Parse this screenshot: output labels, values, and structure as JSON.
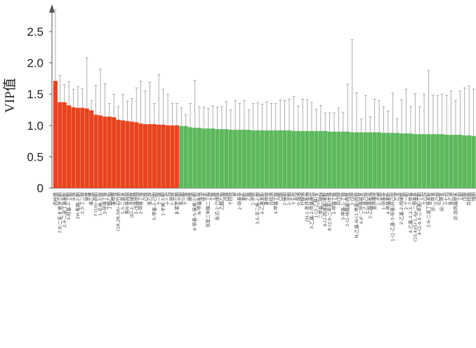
{
  "chart_data": {
    "type": "bar",
    "ylabel": "VIP值",
    "ylim": [
      0,
      3
    ],
    "yticks": [
      0,
      0.5,
      1.0,
      1.5,
      2.0,
      2.5
    ],
    "ytick_labels": [
      "0",
      "0.5",
      "1.0",
      "1.5",
      "2.0",
      "2.5"
    ],
    "grid": false,
    "colors": {
      "vip_above_1": "#e8431f",
      "vip_below_1": "#5cb85c",
      "error_bar": "#999999",
      "axis": "#555555"
    },
    "categories": [
      "肉桂醛",
      "7,8-二氢-β-紫罗兰酮",
      "2,4-二叔丁基苯酚",
      "3-羟基-2-丁酮",
      "壬醛",
      "2H-吡喃-2-酮",
      "2,3-丁二醇",
      "癸醛",
      "苯乙醛",
      "7-(1H)-茚酮",
      "1-辛烯-3-醇",
      "3-甲基丁醛",
      "丁酸乙酯",
      "苯甲醛",
      "(1R,2R,5R)-石竹烯",
      "1,3-二氯苯",
      "香叶基丙酮",
      "(E)-2-辛烯醛",
      "2-戊基呋喃",
      "2-甲基丁醛",
      "己醛",
      "苯乙醇",
      "5-甲基-2-己酮",
      "十一醛",
      "1-辛烯-3-酮",
      "十三烷",
      "1-癸醇",
      "β-紫罗兰酮",
      "苯乙酮",
      "十二醛",
      "庚醛",
      "6-甲基-5-庚烯-2-酮",
      "N-甲基吡咯",
      "甲苯",
      "邻苯二甲酸二丁酯",
      "丁酸",
      "反式-2-己烯醛",
      "乙酸乙酯",
      "戊醛",
      "十四烷",
      "萘",
      "2-甲基萘",
      "苯酚",
      "乙酸",
      "1-辛醇",
      "3,5-辛二烯-2-酮",
      "4-乙基苯酚",
      "苯甲醇",
      "月桂烯",
      "3-甲基丁酸",
      "己酸",
      "2-庚酮",
      "2-辛酮",
      "十五烷",
      "α-蒎烯",
      "柠檬烯",
      "2H-1-苯并吡喃",
      "3-乙基-2-甲基庚烷",
      "1-(2-乙基)苯",
      "二甲基二硫醚",
      "4-(2-丙烯基)苯酚",
      "8-(2,6-二甲基)辛醛",
      "2-甲基丁酸",
      "异戊醇",
      "3-甲基-1-丁醇",
      "2-(2-呋喃基)丙醛",
      "1-戊醇",
      "N-乙基-N-(1-甲基)丙胺",
      "4,4'-二甲基联苯",
      "2-乙基己醇",
      "2-乙酰基吡咯",
      "苯并噻唑",
      "2-壬酮",
      "1-甲基萘",
      "4-甲基苯酚",
      "1-(1-乙基-3-甲基)环己烷",
      "乙苯",
      "2-乙基-2-丙烯醛",
      "2-十一酮",
      "4-乙基-2,2,3-三甲基",
      "(1S,4aS)-1,4a-二甲基萘",
      "4-(2,4,4-三甲基)丁酮",
      "十六烷",
      "2,6-二叔丁基苯酚",
      "对-二甲苯",
      "正己醇",
      "间-二甲苯",
      "十七烷",
      "苯乙烯",
      "对-异丙基甲苯",
      "丁酮",
      "戊酸",
      "月桂酸",
      "植酮"
    ],
    "values": [
      1.71,
      1.37,
      1.37,
      1.32,
      1.29,
      1.28,
      1.28,
      1.27,
      1.24,
      1.17,
      1.16,
      1.14,
      1.14,
      1.13,
      1.09,
      1.08,
      1.07,
      1.06,
      1.05,
      1.03,
      1.02,
      1.02,
      1.02,
      1.01,
      1.01,
      1.0,
      1.0,
      1.0,
      0.99,
      0.99,
      0.97,
      0.96,
      0.96,
      0.95,
      0.95,
      0.95,
      0.94,
      0.94,
      0.94,
      0.93,
      0.93,
      0.93,
      0.93,
      0.93,
      0.92,
      0.92,
      0.92,
      0.92,
      0.92,
      0.92,
      0.92,
      0.92,
      0.92,
      0.91,
      0.91,
      0.91,
      0.91,
      0.91,
      0.91,
      0.91,
      0.91,
      0.9,
      0.9,
      0.9,
      0.9,
      0.9,
      0.89,
      0.89,
      0.89,
      0.89,
      0.89,
      0.89,
      0.89,
      0.88,
      0.88,
      0.88,
      0.88,
      0.87,
      0.87,
      0.87,
      0.86,
      0.86,
      0.86,
      0.86,
      0.86,
      0.86,
      0.86,
      0.85,
      0.85,
      0.85,
      0.85,
      0.84,
      0.84,
      0.83
    ],
    "error_upper": [
      2.85,
      1.8,
      1.65,
      1.7,
      1.58,
      1.62,
      1.59,
      2.08,
      1.4,
      1.64,
      1.9,
      1.67,
      1.35,
      1.5,
      1.3,
      1.5,
      1.39,
      1.43,
      1.6,
      1.71,
      1.55,
      1.69,
      1.35,
      1.81,
      1.58,
      1.5,
      1.35,
      1.35,
      1.28,
      1.17,
      1.35,
      1.72,
      1.3,
      1.29,
      1.27,
      1.31,
      1.29,
      1.3,
      1.38,
      1.25,
      1.4,
      1.35,
      1.4,
      1.25,
      1.35,
      1.36,
      1.34,
      1.38,
      1.35,
      1.35,
      1.41,
      1.4,
      1.42,
      1.46,
      1.31,
      1.42,
      1.41,
      1.37,
      1.26,
      1.32,
      1.2,
      1.2,
      1.2,
      1.28,
      1.21,
      1.66,
      2.37,
      1.52,
      1.1,
      1.48,
      1.14,
      1.42,
      1.4,
      1.3,
      1.23,
      1.52,
      1.11,
      1.41,
      1.58,
      1.3,
      1.51,
      1.3,
      1.5,
      1.88,
      1.48,
      1.48,
      1.5,
      1.48,
      1.55,
      1.4,
      1.55,
      1.6,
      1.63,
      1.58
    ],
    "error_lower": [
      1.02,
      0.86,
      1.05,
      0.9,
      0.92,
      0.88,
      0.93,
      0.78,
      1.03,
      0.95,
      0.58,
      0.78,
      0.85,
      0.9,
      0.8,
      0.7,
      0.82,
      0.76,
      0.56,
      0.48,
      0.63,
      0.52,
      0.67,
      0.45,
      0.55,
      0.52,
      0.64,
      0.6,
      0.7,
      0.76,
      0.6,
      0.28,
      0.63,
      0.62,
      0.63,
      0.59,
      0.6,
      0.58,
      0.5,
      0.61,
      0.48,
      0.52,
      0.46,
      0.61,
      0.49,
      0.48,
      0.5,
      0.46,
      0.49,
      0.49,
      0.43,
      0.44,
      0.42,
      0.36,
      0.52,
      0.4,
      0.41,
      0.45,
      0.56,
      0.5,
      0.62,
      0.6,
      0.6,
      0.52,
      0.59,
      0.14,
      -0.55,
      0.26,
      0.68,
      0.3,
      0.64,
      0.36,
      0.38,
      0.46,
      0.53,
      0.24,
      0.65,
      0.33,
      0.16,
      0.44,
      0.21,
      0.42,
      0.22,
      -0.16,
      0.24,
      0.24,
      0.22,
      0.22,
      0.15,
      0.3,
      0.15,
      0.08,
      0.05,
      0.08
    ]
  }
}
